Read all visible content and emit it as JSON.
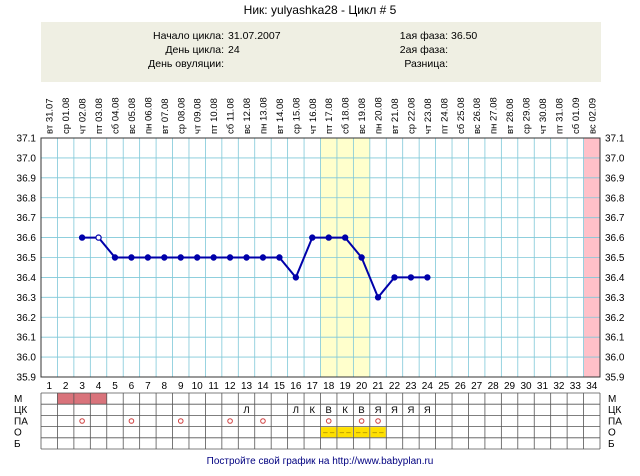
{
  "header": {
    "title": "Ник: yulyashka28 - Цикл # 5"
  },
  "info": {
    "cycle_start_label": "Начало цикла:",
    "cycle_start_value": "31.07.2007",
    "cycle_day_label": "День цикла:",
    "cycle_day_value": "24",
    "ovulation_day_label": "День овуляции:",
    "ovulation_day_value": "",
    "phase1_label": "1ая фаза:",
    "phase1_value": "36.50",
    "phase2_label": "2ая фаза:",
    "phase2_value": "",
    "difference_label": "Разница:",
    "difference_value": ""
  },
  "chart_data": {
    "type": "line",
    "dates": [
      "вт 31.07",
      "ср 01.08",
      "чт 02.08",
      "пт 03.08",
      "сб 04.08",
      "вс 05.08",
      "пн 06.08",
      "вт 07.08",
      "ср 08.08",
      "чт 09.08",
      "пт 10.08",
      "сб 11.08",
      "вс 12.08",
      "пн 13.08",
      "вт 14.08",
      "ср 15.08",
      "чт 16.08",
      "пт 17.08",
      "сб 18.08",
      "вс 19.08",
      "пн 20.08",
      "вт 21.08",
      "ср 22.08",
      "чт 23.08",
      "пт 24.08",
      "сб 25.08",
      "вс 26.08",
      "пн 27.08",
      "вт 28.08",
      "ср 29.08",
      "чт 30.08",
      "пт 31.08",
      "сб 01.09",
      "вс 02.09"
    ],
    "days": [
      "1",
      "2",
      "3",
      "4",
      "5",
      "6",
      "7",
      "8",
      "9",
      "10",
      "11",
      "12",
      "13",
      "14",
      "15",
      "16",
      "17",
      "18",
      "19",
      "20",
      "21",
      "22",
      "23",
      "24",
      "25",
      "26",
      "27",
      "28",
      "29",
      "30",
      "31",
      "32",
      "33",
      "34"
    ],
    "temperatures": [
      null,
      null,
      36.6,
      36.6,
      36.5,
      36.5,
      36.5,
      36.5,
      36.5,
      36.5,
      36.5,
      36.5,
      36.5,
      36.5,
      36.5,
      36.4,
      36.6,
      36.6,
      36.6,
      36.5,
      36.3,
      36.4,
      36.4,
      36.4,
      null,
      null,
      null,
      null,
      null,
      null,
      null,
      null,
      null,
      null
    ],
    "open_points": [
      4
    ],
    "y_ticks": [
      "37.1",
      "37.0",
      "36.9",
      "36.8",
      "36.7",
      "36.6",
      "36.5",
      "36.4",
      "36.3",
      "36.2",
      "36.1",
      "36.0",
      "35.9"
    ],
    "ylim": [
      35.9,
      37.1
    ],
    "highlight_days": [
      18,
      19,
      20
    ],
    "highlight_color": "#ffffcc",
    "last_day_color": "#ffc0c8",
    "line_color": "#0000aa",
    "grid_color": "#7fc8d8"
  },
  "bottom_rows": [
    {
      "label": "М",
      "cells": []
    },
    {
      "label": "ЦК",
      "cells": [
        {
          "day": 13,
          "text": "Л"
        },
        {
          "day": 16,
          "text": "Л"
        },
        {
          "day": 17,
          "text": "К"
        },
        {
          "day": 18,
          "text": "В"
        },
        {
          "day": 19,
          "text": "К"
        },
        {
          "day": 20,
          "text": "В"
        },
        {
          "day": 21,
          "text": "Я"
        },
        {
          "day": 22,
          "text": "Я"
        },
        {
          "day": 23,
          "text": "Я"
        },
        {
          "day": 24,
          "text": "Я"
        }
      ]
    },
    {
      "label": "ПА",
      "cells": []
    },
    {
      "label": "О",
      "cells": []
    },
    {
      "label": "Б",
      "cells": []
    }
  ],
  "menstruation_days": [
    2,
    3,
    4
  ],
  "menstruation_color": "#d9737b",
  "pa_days": [
    3,
    6,
    9,
    12,
    14,
    18,
    20,
    21
  ],
  "o_days": [
    18,
    19,
    20,
    21
  ],
  "o_mark": "– –",
  "o_color": "#ffe000",
  "footer": {
    "text": "Постройте свой график на http://www.babyplan.ru"
  }
}
